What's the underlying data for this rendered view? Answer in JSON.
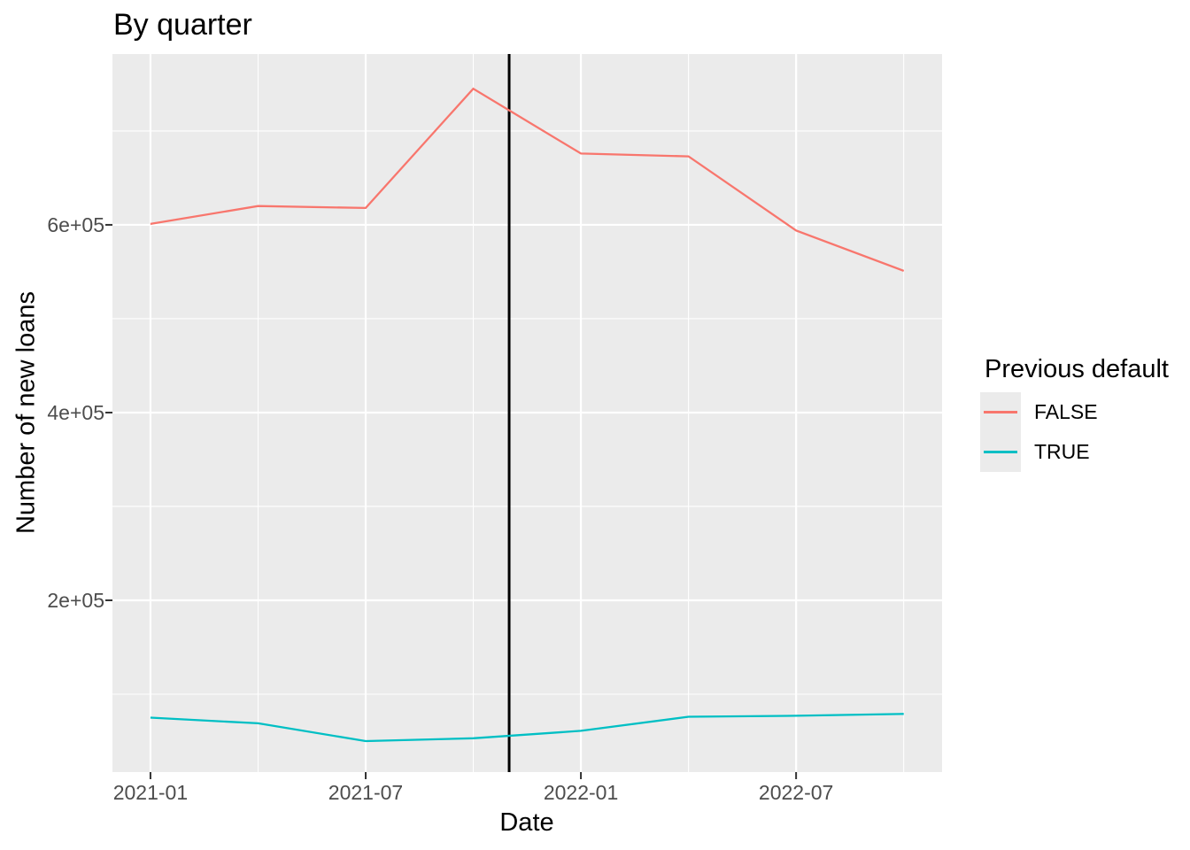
{
  "chart": {
    "title": "By quarter",
    "xlabel": "Date",
    "ylabel": "Number of new loans"
  },
  "legend": {
    "title": "Previous default"
  },
  "chart_data": {
    "type": "line",
    "title": "By quarter",
    "xlabel": "Date",
    "ylabel": "Number of new loans",
    "x": [
      "2021-01",
      "2021-04",
      "2021-07",
      "2021-10",
      "2022-01",
      "2022-04",
      "2022-07",
      "2022-10"
    ],
    "series": [
      {
        "name": "FALSE",
        "color": "#F8766D",
        "values": [
          601000,
          620000,
          618000,
          745000,
          676000,
          673000,
          594000,
          551000
        ]
      },
      {
        "name": "TRUE",
        "color": "#00BFC4",
        "values": [
          75000,
          69000,
          50000,
          53000,
          61000,
          76000,
          77000,
          79000
        ]
      }
    ],
    "vline": {
      "x": "2021-11",
      "color": "#000000"
    },
    "x_axis": {
      "major_ticks": [
        "2021-01",
        "2021-07",
        "2022-01",
        "2022-07"
      ],
      "minor_ticks": [
        "2021-04",
        "2021-10",
        "2022-04",
        "2022-10"
      ],
      "xlim_months": [
        -1.06,
        22.07
      ]
    },
    "y_axis": {
      "major_ticks": [
        {
          "label": "2e+05",
          "value": 200000
        },
        {
          "label": "4e+05",
          "value": 400000
        },
        {
          "label": "6e+05",
          "value": 600000
        }
      ],
      "minor_values": [
        100000,
        300000,
        500000,
        700000
      ],
      "ylim": [
        17000,
        782000
      ]
    },
    "legend_position": "right",
    "grid": true,
    "colors": {
      "panel_bg": "#EBEBEB",
      "grid": "#FFFFFF",
      "tick_mark": "#333333",
      "tick_text": "#4D4D4D"
    }
  }
}
